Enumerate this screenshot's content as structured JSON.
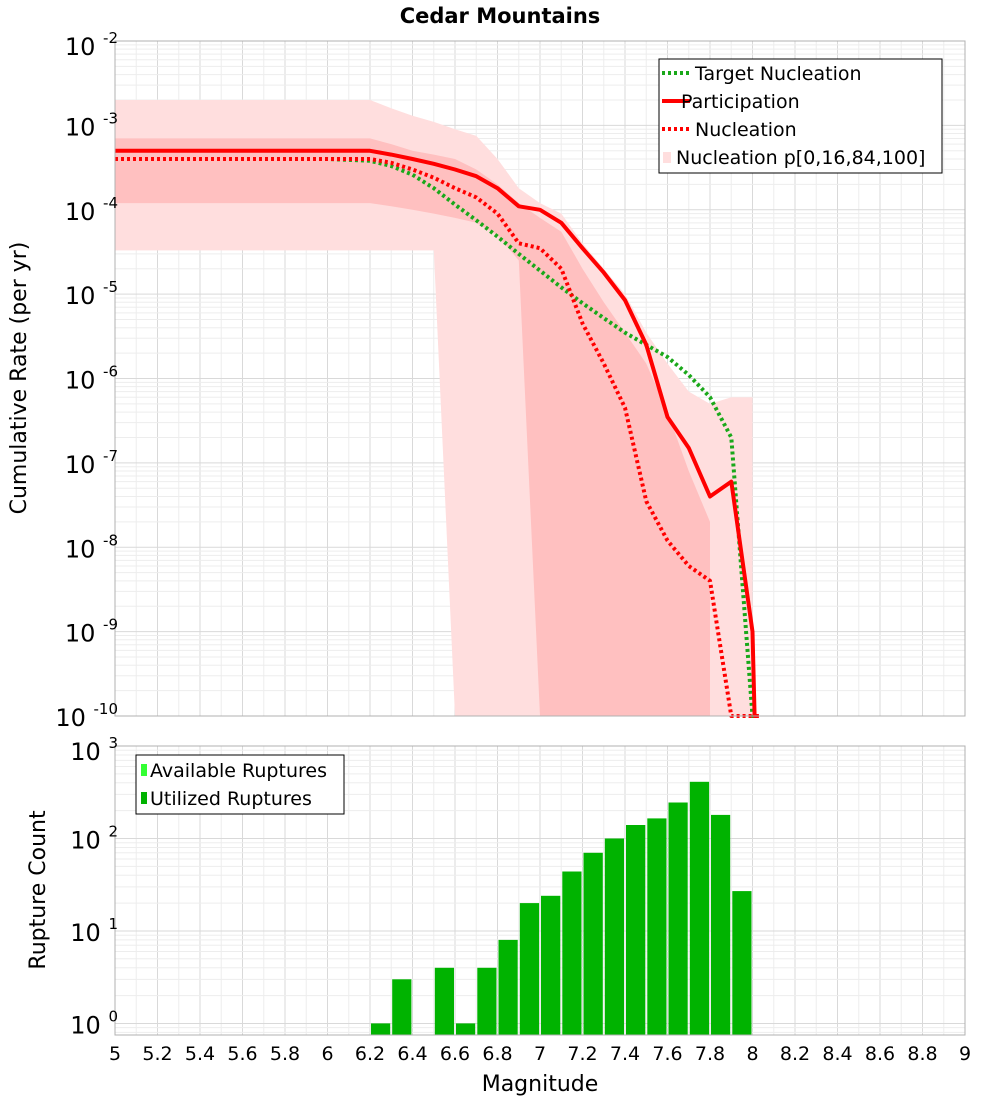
{
  "title": "Cedar Mountains",
  "colors": {
    "target": "#1aa81a",
    "participation": "#ff0000",
    "nucleation": "#ff0000",
    "band_outer": "#ffdede",
    "band_inner": "#ffc0c0",
    "bars": "#00b300",
    "available": "#33ff33",
    "grid_major": "#d9d9d9",
    "grid_minor": "#ededed"
  },
  "chart_data": [
    {
      "type": "line",
      "title": "Cedar Mountains",
      "xlabel": "",
      "ylabel": "Cumulative Rate (per yr)",
      "yscale": "log",
      "xlim": [
        5,
        9
      ],
      "ylim": [
        1e-10,
        0.01
      ],
      "yticks": [
        {
          "base": "10",
          "exp": "-2",
          "v": 0.01
        },
        {
          "base": "10",
          "exp": "-3",
          "v": 0.001
        },
        {
          "base": "10",
          "exp": "-4",
          "v": 0.0001
        },
        {
          "base": "10",
          "exp": "-5",
          "v": 1e-05
        },
        {
          "base": "10",
          "exp": "-6",
          "v": 1e-06
        },
        {
          "base": "10",
          "exp": "-7",
          "v": 1e-07
        },
        {
          "base": "10",
          "exp": "-8",
          "v": 1e-08
        },
        {
          "base": "10",
          "exp": "-9",
          "v": 1e-09
        },
        {
          "base": "10",
          "exp": "-10",
          "v": 1e-10
        }
      ],
      "legend": [
        {
          "label": "Target Nucleation",
          "style": "dotted",
          "color": "#1aa81a"
        },
        {
          "label": "Participation",
          "style": "solid",
          "color": "#ff0000"
        },
        {
          "label": "Nucleation",
          "style": "dotted",
          "color": "#ff0000"
        },
        {
          "label": "Nucleation p[0,16,84,100]",
          "style": "band",
          "color": "#ffdede"
        }
      ],
      "series": [
        {
          "name": "Target Nucleation",
          "x": [
            5.0,
            6.0,
            6.2,
            6.3,
            6.4,
            6.5,
            6.6,
            6.7,
            6.8,
            6.9,
            7.0,
            7.1,
            7.2,
            7.3,
            7.4,
            7.5,
            7.6,
            7.7,
            7.8,
            7.9,
            8.0,
            8.01
          ],
          "y": [
            0.0004,
            0.0004,
            0.00038,
            0.00033,
            0.00026,
            0.00018,
            0.000115,
            7.5e-05,
            4.8e-05,
            3e-05,
            1.9e-05,
            1.2e-05,
            7.8e-06,
            5.2e-06,
            3.5e-06,
            2.5e-06,
            1.8e-06,
            1.1e-06,
            6e-07,
            2e-07,
            1e-10,
            1e-10
          ]
        },
        {
          "name": "Participation",
          "x": [
            5.0,
            6.2,
            6.3,
            6.4,
            6.5,
            6.6,
            6.7,
            6.8,
            6.9,
            7.0,
            7.1,
            7.2,
            7.3,
            7.4,
            7.5,
            7.6,
            7.7,
            7.8,
            7.9,
            8.0,
            8.01,
            8.02,
            8.03
          ],
          "y": [
            0.0005,
            0.0005,
            0.00045,
            0.0004,
            0.00035,
            0.0003,
            0.00025,
            0.00018,
            0.00011,
            0.0001,
            7e-05,
            3.5e-05,
            1.8e-05,
            8.5e-06,
            2.5e-06,
            3.5e-07,
            1.5e-07,
            4e-08,
            6e-08,
            1e-09,
            1e-10,
            1e-10,
            1e-10
          ]
        },
        {
          "name": "Nucleation",
          "x": [
            5.0,
            6.2,
            6.3,
            6.4,
            6.5,
            6.6,
            6.7,
            6.8,
            6.9,
            7.0,
            7.1,
            7.2,
            7.3,
            7.4,
            7.5,
            7.6,
            7.7,
            7.8,
            7.9,
            8.0,
            8.01,
            8.02
          ],
          "y": [
            0.0004,
            0.0004,
            0.00036,
            0.0003,
            0.00024,
            0.00018,
            0.00014,
            9e-05,
            4e-05,
            3.5e-05,
            2e-05,
            4.5e-06,
            1.5e-06,
            4.5e-07,
            3.5e-08,
            1.2e-08,
            6e-09,
            4e-09,
            1e-10,
            1e-10,
            1e-10,
            1e-10
          ]
        }
      ],
      "bands": {
        "outer": {
          "x": [
            5.0,
            6.2,
            6.3,
            6.4,
            6.5,
            6.6,
            6.7,
            6.8,
            6.9,
            7.0,
            7.1,
            7.2,
            7.3,
            7.4,
            7.5,
            7.6,
            7.7,
            7.8,
            7.9,
            8.0
          ],
          "upper": [
            0.002,
            0.002,
            0.0016,
            0.0013,
            0.0011,
            0.0009,
            0.00075,
            0.0004,
            0.00018,
            0.00012,
            9e-05,
            4e-05,
            2e-05,
            1e-05,
            3.5e-06,
            1.5e-06,
            7e-07,
            5e-07,
            6e-07,
            6e-07
          ],
          "lower": [
            3.3e-05,
            3.3e-05,
            3.3e-05,
            3.3e-05,
            3.3e-05,
            1e-10,
            1e-10,
            1e-10,
            1e-10,
            1e-10,
            1e-10,
            1e-10,
            1e-10,
            1e-10,
            1e-10,
            1e-10,
            1e-10,
            1e-10,
            1e-10,
            1e-10
          ]
        },
        "inner": {
          "x": [
            5.0,
            6.2,
            6.3,
            6.4,
            6.5,
            6.6,
            6.7,
            6.8,
            6.9,
            7.0,
            7.1,
            7.2,
            7.3,
            7.4,
            7.5,
            7.6,
            7.7,
            7.8
          ],
          "upper": [
            0.0007,
            0.0007,
            0.0006,
            0.0005,
            0.00045,
            0.0004,
            0.0003,
            0.0002,
            0.00012,
            8e-05,
            5.5e-05,
            2e-05,
            8e-06,
            3.5e-06,
            1.5e-06,
            4e-07,
            8e-08,
            2e-08
          ],
          "lower": [
            0.00012,
            0.00012,
            0.00011,
            0.0001,
            9e-05,
            8e-05,
            7e-05,
            5e-05,
            2.5e-05,
            1e-10,
            1e-10,
            1e-10,
            1e-10,
            1e-10,
            1e-10,
            1e-10,
            1e-10,
            1e-10
          ]
        }
      }
    },
    {
      "type": "bar",
      "xlabel": "Magnitude",
      "ylabel": "Rupture Count",
      "yscale": "log",
      "xlim": [
        5,
        9
      ],
      "ylim": [
        0.75,
        1000
      ],
      "xticks": [
        "5",
        "5.2",
        "5.4",
        "5.6",
        "5.8",
        "6",
        "6.2",
        "6.4",
        "6.6",
        "6.8",
        "7",
        "7.2",
        "7.4",
        "7.6",
        "7.8",
        "8",
        "8.2",
        "8.4",
        "8.6",
        "8.8",
        "9"
      ],
      "yticks": [
        {
          "base": "10",
          "exp": "3",
          "v": 1000
        },
        {
          "base": "10",
          "exp": "2",
          "v": 100
        },
        {
          "base": "10",
          "exp": "1",
          "v": 10
        },
        {
          "base": "10",
          "exp": "0",
          "v": 1
        }
      ],
      "legend": [
        {
          "label": "Available Ruptures",
          "color": "#33ff33"
        },
        {
          "label": "Utilized Ruptures",
          "color": "#00b300"
        }
      ],
      "bar_width": 0.1,
      "series": [
        {
          "name": "Utilized Ruptures",
          "x": [
            6.25,
            6.35,
            6.55,
            6.65,
            6.75,
            6.85,
            6.95,
            7.05,
            7.15,
            7.25,
            7.35,
            7.45,
            7.55,
            7.65,
            7.75,
            7.85,
            7.95
          ],
          "values": [
            1,
            3,
            4,
            1,
            4,
            8,
            20,
            24,
            44,
            70,
            100,
            140,
            165,
            245,
            410,
            180,
            27
          ]
        }
      ]
    }
  ]
}
